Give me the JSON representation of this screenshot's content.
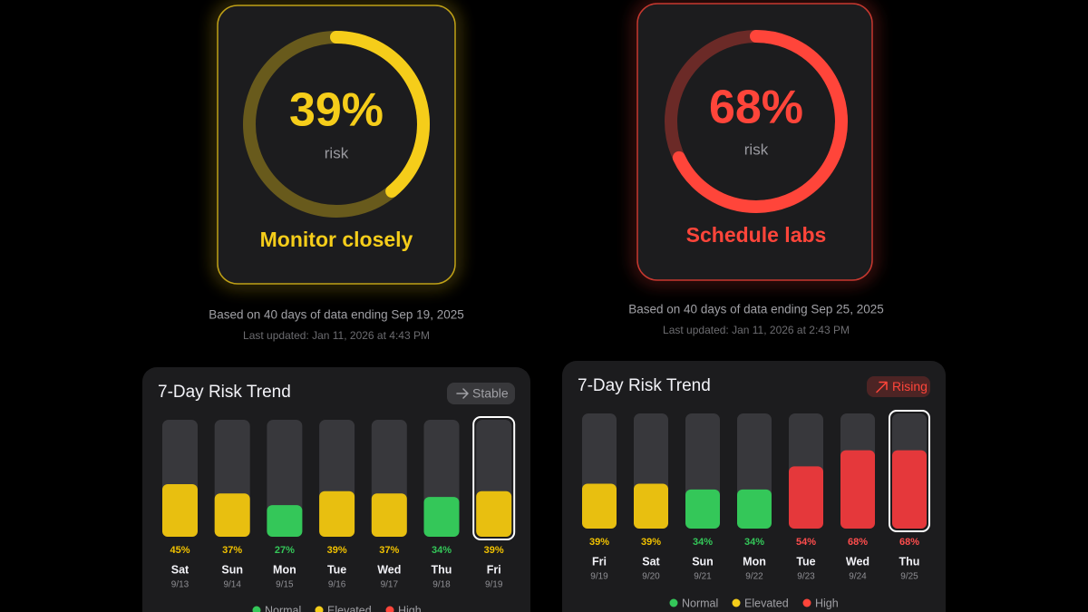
{
  "panels": [
    {
      "gauge": {
        "value": 39,
        "value_label": "39%",
        "caption": "risk",
        "status": "Monitor closely",
        "color": "#f5cd1a"
      },
      "based_on": "Based on 40 days of data ending Sep 19, 2025",
      "last_updated": "Last updated: Jan 11, 2026 at 4:43 PM",
      "trend": {
        "title": "7-Day Risk Trend",
        "badge": "Stable",
        "badge_color": "#a0a0a5",
        "ylim": [
          0,
          100
        ],
        "days": [
          "Sat",
          "Sun",
          "Mon",
          "Tue",
          "Wed",
          "Thu",
          "Fri"
        ],
        "dates": [
          "9/13",
          "9/14",
          "9/15",
          "9/16",
          "9/17",
          "9/18",
          "9/19"
        ],
        "values": [
          45,
          37,
          27,
          39,
          37,
          34,
          39
        ],
        "value_labels": [
          "45%",
          "37%",
          "27%",
          "39%",
          "37%",
          "34%",
          "39%"
        ],
        "levels": [
          1,
          1,
          0,
          1,
          1,
          0,
          1
        ],
        "selected": 6
      }
    },
    {
      "gauge": {
        "value": 68,
        "value_label": "68%",
        "caption": "risk",
        "status": "Schedule labs",
        "color": "#ff453a"
      },
      "based_on": "Based on 40 days of data ending Sep 25, 2025",
      "last_updated": "Last updated: Jan 11, 2026 at 2:43 PM",
      "trend": {
        "title": "7-Day Risk Trend",
        "badge": "Rising",
        "badge_color": "#ff453a",
        "ylim": [
          0,
          100
        ],
        "days": [
          "Fri",
          "Sat",
          "Sun",
          "Mon",
          "Tue",
          "Wed",
          "Thu"
        ],
        "dates": [
          "9/19",
          "9/20",
          "9/21",
          "9/22",
          "9/23",
          "9/24",
          "9/25"
        ],
        "values": [
          39,
          39,
          34,
          34,
          54,
          68,
          68
        ],
        "value_labels": [
          "39%",
          "39%",
          "34%",
          "34%",
          "54%",
          "68%",
          "68%"
        ],
        "levels": [
          1,
          1,
          0,
          0,
          2,
          2,
          2
        ],
        "selected": 6
      }
    }
  ],
  "legend": [
    {
      "name": "Normal",
      "color": "#34c759"
    },
    {
      "name": "Elevated",
      "color": "#f5cd1a"
    },
    {
      "name": "High",
      "color": "#ff453a"
    }
  ]
}
